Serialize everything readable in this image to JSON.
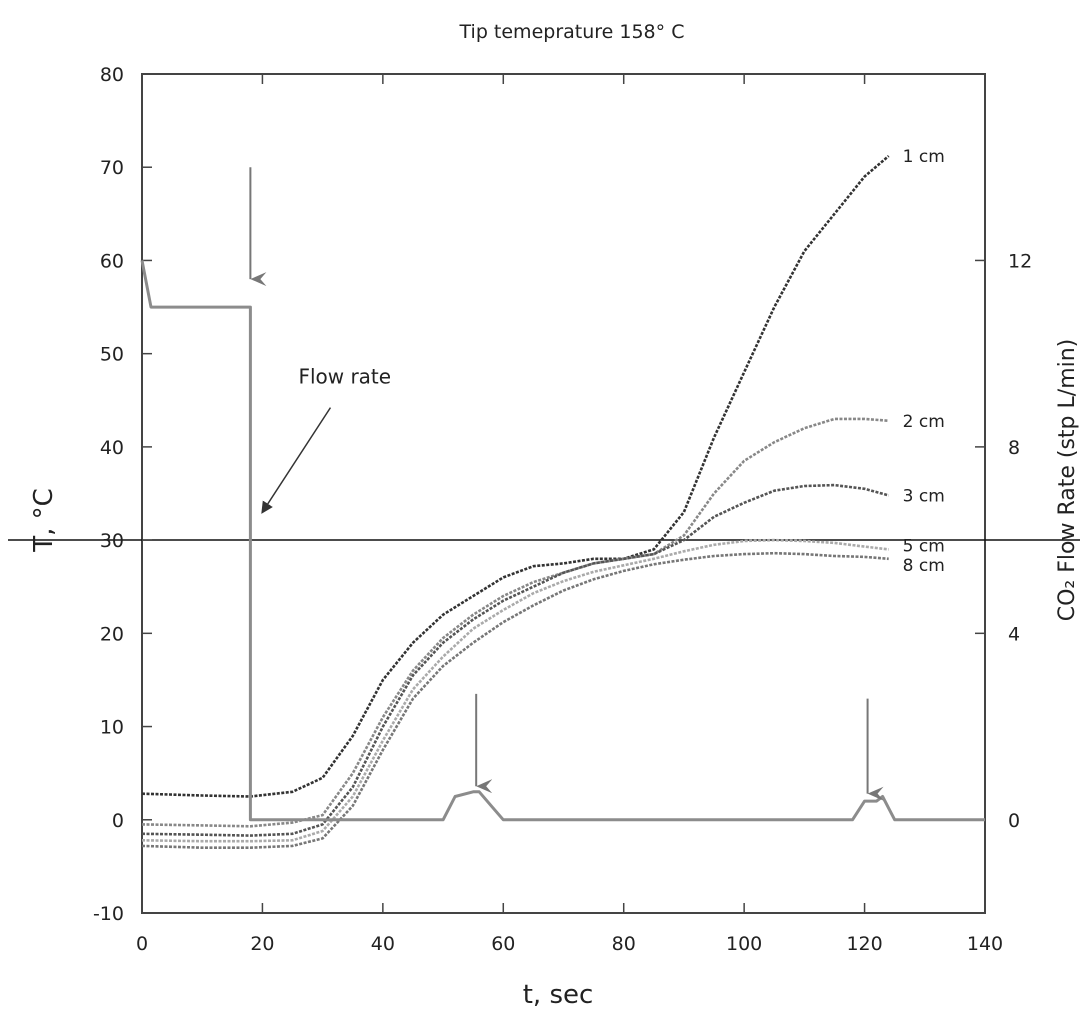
{
  "chart_data": {
    "type": "line",
    "title": "Tip temeprature 158° C",
    "xlabel": "t, sec",
    "ylabel": "T, °C",
    "ylabel_right": "CO₂ Flow Rate (stp L/min)",
    "xlim": [
      0,
      140
    ],
    "ylim": [
      -10,
      80
    ],
    "ylim_right": [
      -2,
      16
    ],
    "xticks": [
      "0",
      "20",
      "40",
      "60",
      "80",
      "100",
      "120",
      "140"
    ],
    "yticks": [
      "-10",
      "0",
      "10",
      "20",
      "30",
      "40",
      "50",
      "60",
      "70",
      "80"
    ],
    "yticks_right": [
      "0",
      "4",
      "8",
      "12"
    ],
    "grid": false,
    "series": [
      {
        "name": "1 cm",
        "axis": "left",
        "color": "#333333",
        "x": [
          0,
          10,
          18,
          25,
          30,
          35,
          40,
          45,
          50,
          55,
          60,
          65,
          70,
          75,
          80,
          85,
          90,
          95,
          100,
          105,
          110,
          115,
          120,
          124
        ],
        "y": [
          2.8,
          2.6,
          2.5,
          3,
          4.5,
          9,
          15,
          19,
          22,
          24,
          26,
          27.2,
          27.5,
          28,
          28,
          29,
          33,
          41,
          48,
          55,
          61,
          65,
          69,
          71.2
        ]
      },
      {
        "name": "2 cm",
        "axis": "left",
        "color": "#888888",
        "x": [
          0,
          10,
          18,
          25,
          30,
          35,
          40,
          45,
          50,
          55,
          60,
          65,
          70,
          75,
          80,
          85,
          90,
          95,
          100,
          105,
          110,
          115,
          120,
          124
        ],
        "y": [
          -0.5,
          -0.6,
          -0.7,
          -0.3,
          0.5,
          5,
          11,
          16,
          19.5,
          22,
          24,
          25.5,
          26.5,
          27.5,
          28,
          28.5,
          30.5,
          35,
          38.5,
          40.5,
          42,
          43,
          43,
          42.8
        ]
      },
      {
        "name": "3 cm",
        "axis": "left",
        "color": "#555555",
        "x": [
          0,
          10,
          18,
          25,
          30,
          35,
          40,
          45,
          50,
          55,
          60,
          65,
          70,
          75,
          80,
          85,
          90,
          95,
          100,
          105,
          110,
          115,
          120,
          124
        ],
        "y": [
          -1.5,
          -1.6,
          -1.7,
          -1.5,
          -0.5,
          3.5,
          10,
          15.5,
          19,
          21.5,
          23.5,
          25,
          26.5,
          27.5,
          28,
          28.5,
          30,
          32.5,
          34,
          35.3,
          35.8,
          35.9,
          35.5,
          34.8
        ]
      },
      {
        "name": "5 cm",
        "axis": "left",
        "color": "#aaaaaa",
        "x": [
          0,
          10,
          18,
          25,
          30,
          35,
          40,
          45,
          50,
          55,
          60,
          65,
          70,
          75,
          80,
          85,
          90,
          95,
          100,
          105,
          110,
          115,
          120,
          124
        ],
        "y": [
          -2.2,
          -2.3,
          -2.3,
          -2.2,
          -1.2,
          2.5,
          8.5,
          14,
          17.5,
          20.5,
          22.5,
          24.3,
          25.6,
          26.6,
          27.3,
          28,
          28.8,
          29.5,
          29.9,
          30,
          29.9,
          29.7,
          29.3,
          29
        ]
      },
      {
        "name": "8 cm",
        "axis": "left",
        "color": "#777777",
        "x": [
          0,
          10,
          18,
          25,
          30,
          35,
          40,
          45,
          50,
          55,
          60,
          65,
          70,
          75,
          80,
          85,
          90,
          95,
          100,
          105,
          110,
          115,
          120,
          124
        ],
        "y": [
          -2.8,
          -3,
          -3,
          -2.8,
          -2,
          1.5,
          7.5,
          13,
          16.5,
          19,
          21.2,
          23,
          24.6,
          25.8,
          26.7,
          27.4,
          27.9,
          28.3,
          28.5,
          28.6,
          28.5,
          28.3,
          28.2,
          28
        ]
      },
      {
        "name": "Flow rate",
        "axis": "right",
        "color": "#8c8c8c",
        "x": [
          0,
          1.5,
          18,
          18,
          20,
          50,
          52,
          55,
          56,
          58,
          60,
          118,
          120,
          122,
          123,
          125,
          140
        ],
        "y": [
          12,
          11,
          11,
          0,
          0,
          0,
          0.5,
          0.6,
          0.6,
          0.3,
          0,
          0,
          0.4,
          0.4,
          0.5,
          0,
          0
        ]
      }
    ],
    "annotations": [
      {
        "text": "Flow rate",
        "x": 21,
        "y": 47
      },
      {
        "type": "arrow",
        "x": 18,
        "y_from": 70,
        "y_to": 58
      },
      {
        "type": "arrow",
        "x": 55.5,
        "y_from": 13.5,
        "y_to": 3.6
      },
      {
        "type": "arrow",
        "x": 120.5,
        "y_from": 13,
        "y_to": 2.8
      }
    ]
  }
}
